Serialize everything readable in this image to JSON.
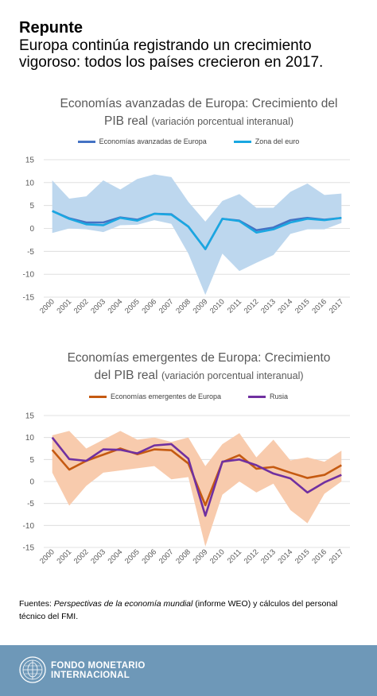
{
  "header": {
    "headline": "Repunte",
    "subhead": "Europa continúa registrando un crecimiento vigoroso: todos los países crecieron en 2017."
  },
  "chart_data": [
    {
      "type": "line",
      "title": "Economías avanzadas de Europa: Crecimiento del",
      "title_line2": "PIB real",
      "subtitle": "(variación porcentual interanual)",
      "x": [
        "2000",
        "2001",
        "2002",
        "2003",
        "2004",
        "2005",
        "2006",
        "2007",
        "2008",
        "2009",
        "2010",
        "2011",
        "2012",
        "2013",
        "2014",
        "2015",
        "2016",
        "2017"
      ],
      "ylim": [
        -15,
        15
      ],
      "yticks": [
        15,
        10,
        5,
        0,
        -5,
        -10,
        -15
      ],
      "grid": true,
      "legend": "top",
      "band": {
        "color": "#bdd7ee",
        "upper": [
          10.5,
          6.5,
          7,
          10.5,
          8.5,
          10.8,
          11.8,
          11.2,
          5.8,
          1.5,
          6,
          7.5,
          4.5,
          4.5,
          8,
          9.8,
          7.3,
          7.6
        ],
        "lower": [
          -1,
          0,
          -0.2,
          -0.8,
          0.7,
          0.8,
          1.8,
          1,
          -5.5,
          -14.5,
          -5.5,
          -9.3,
          -7.5,
          -5.8,
          -1.2,
          -0.2,
          -0.2,
          1.2
        ]
      },
      "series": [
        {
          "name": "Economías avanzadas de Europa",
          "color": "#4472c4",
          "values": [
            3.8,
            2.2,
            1.3,
            1.3,
            2.4,
            1.9,
            3.2,
            3.1,
            0.4,
            -4.5,
            2.1,
            1.7,
            -0.4,
            0.2,
            1.8,
            2.3,
            1.9,
            2.3
          ]
        },
        {
          "name": "Zona del euro",
          "color": "#1aa7e1",
          "values": [
            3.8,
            2.1,
            0.9,
            0.7,
            2.3,
            1.7,
            3.2,
            3.0,
            0.4,
            -4.5,
            2.1,
            1.6,
            -0.9,
            -0.2,
            1.3,
            2.1,
            1.8,
            2.3
          ]
        }
      ]
    },
    {
      "type": "line",
      "title": "Economías emergentes de Europa: Crecimiento",
      "title_line2": "del PIB real",
      "subtitle": "(variación porcentual interanual)",
      "x": [
        "2000",
        "2001",
        "2002",
        "2003",
        "2004",
        "2005",
        "2006",
        "2007",
        "2008",
        "2009",
        "2010",
        "2011",
        "2012",
        "2013",
        "2014",
        "2015",
        "2016",
        "2017"
      ],
      "ylim": [
        -15,
        15
      ],
      "yticks": [
        15,
        10,
        5,
        0,
        -5,
        -10,
        -15
      ],
      "grid": true,
      "legend": "top",
      "band": {
        "color": "#f8cbad",
        "upper": [
          10.5,
          11.5,
          7.5,
          9.5,
          11.5,
          9.5,
          10,
          9,
          10,
          3.5,
          8.5,
          11,
          5.5,
          9.5,
          4.8,
          5.5,
          4.5,
          7
        ],
        "lower": [
          2,
          -5.5,
          -1,
          2,
          2.5,
          3,
          3.5,
          0.5,
          1,
          -14.8,
          -3,
          0,
          -2.5,
          -0.5,
          -6.5,
          -9.5,
          -2.8,
          0
        ]
      },
      "series": [
        {
          "name": "Economías emergentes de Europa",
          "color": "#c55a11",
          "values": [
            7.2,
            2.7,
            4.7,
            6.1,
            7.5,
            6.2,
            7.3,
            7.1,
            4.1,
            -5.4,
            4.4,
            6.0,
            2.9,
            3.3,
            2.0,
            0.8,
            1.5,
            3.7
          ]
        },
        {
          "name": "Rusia",
          "color": "#7030a0",
          "values": [
            10.0,
            5.1,
            4.7,
            7.3,
            7.2,
            6.4,
            8.2,
            8.5,
            5.2,
            -7.8,
            4.5,
            5.0,
            3.7,
            1.8,
            0.7,
            -2.5,
            -0.2,
            1.5
          ]
        }
      ]
    }
  ],
  "source": {
    "prefix": "Fuentes: ",
    "italic": "Perspectivas de la economía mundial",
    "suffix": " (informe WEO) y cálculos del personal técnico del FMI."
  },
  "footer": {
    "org_line1": "FONDO MONETARIO",
    "org_line2": "INTERNACIONAL",
    "bg_color": "#6e98b8"
  }
}
